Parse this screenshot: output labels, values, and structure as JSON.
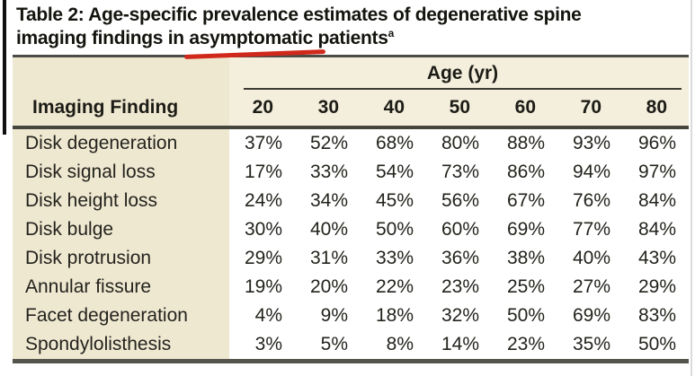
{
  "title": {
    "line1": "Table 2: Age-specific prevalence estimates of degenerative spine",
    "line2_prefix": "imaging findings in ",
    "line2_highlight": "asymptomatic",
    "line2_suffix": " patients",
    "footnote_marker": "a"
  },
  "annotation": {
    "underline_color": "#d0291b"
  },
  "table": {
    "age_group_header": "Age (yr)",
    "finding_column_header": "Imaging Finding",
    "age_columns": [
      "20",
      "30",
      "40",
      "50",
      "60",
      "70",
      "80"
    ],
    "rows": [
      {
        "label": "Disk degeneration",
        "values": [
          "37%",
          "52%",
          "68%",
          "80%",
          "88%",
          "93%",
          "96%"
        ]
      },
      {
        "label": "Disk signal loss",
        "values": [
          "17%",
          "33%",
          "54%",
          "73%",
          "86%",
          "94%",
          "97%"
        ]
      },
      {
        "label": "Disk height loss",
        "values": [
          "24%",
          "34%",
          "45%",
          "56%",
          "67%",
          "76%",
          "84%"
        ]
      },
      {
        "label": "Disk bulge",
        "values": [
          "30%",
          "40%",
          "50%",
          "60%",
          "69%",
          "77%",
          "84%"
        ]
      },
      {
        "label": "Disk protrusion",
        "values": [
          "29%",
          "31%",
          "33%",
          "36%",
          "38%",
          "40%",
          "43%"
        ]
      },
      {
        "label": "Annular fissure",
        "values": [
          "19%",
          "20%",
          "22%",
          "23%",
          "25%",
          "27%",
          "29%"
        ]
      },
      {
        "label": "Facet degeneration",
        "values": [
          "4%",
          "9%",
          "18%",
          "32%",
          "50%",
          "69%",
          "83%"
        ]
      },
      {
        "label": "Spondylolisthesis",
        "values": [
          "3%",
          "5%",
          "8%",
          "14%",
          "23%",
          "35%",
          "50%"
        ]
      }
    ],
    "colors": {
      "header_bg": "#f4eedc",
      "label_column_bg": "#efe8d1",
      "rule_dark": "#45453e",
      "text": "#21211c"
    }
  }
}
